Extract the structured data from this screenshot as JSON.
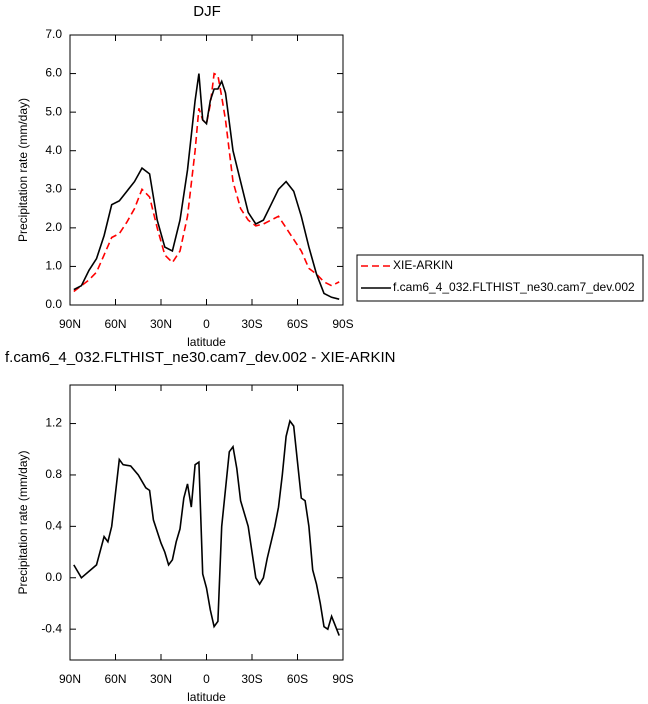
{
  "chart_data": [
    {
      "type": "line",
      "title": "DJF",
      "x_label": "latitude",
      "y_label": "Precipitation rate (mm/day)",
      "x": [
        87.5,
        82.5,
        77.5,
        72.5,
        67.5,
        62.5,
        57.5,
        52.5,
        47.5,
        42.5,
        37.5,
        32.5,
        27.5,
        22.5,
        17.5,
        12.5,
        7.5,
        5,
        2.5,
        0,
        -2.5,
        -5,
        -7.5,
        -10,
        -12.5,
        -17.5,
        -22.5,
        -27.5,
        -32.5,
        -37.5,
        -42.5,
        -47.5,
        -52.5,
        -57.5,
        -62.5,
        -67.5,
        -72.5,
        -77.5,
        -82.5,
        -87.5
      ],
      "series": [
        {
          "name": "XIE-ARKIN",
          "color": "#ff0000",
          "line_style": "dashed",
          "values": [
            0.35,
            0.5,
            0.65,
            0.85,
            1.3,
            1.75,
            1.85,
            2.15,
            2.5,
            3.0,
            2.8,
            2.0,
            1.3,
            1.1,
            1.4,
            2.3,
            4.0,
            5.1,
            4.8,
            4.7,
            5.2,
            6.0,
            5.95,
            5.4,
            4.8,
            3.2,
            2.5,
            2.2,
            2.05,
            2.1,
            2.2,
            2.3,
            2.0,
            1.7,
            1.4,
            0.95,
            0.8,
            0.6,
            0.5,
            0.6
          ]
        },
        {
          "name": "f.cam6_4_032.FLTHIST_ne30.cam7_dev.002",
          "color": "#000000",
          "line_style": "solid",
          "values": [
            0.4,
            0.5,
            0.9,
            1.2,
            1.8,
            2.6,
            2.7,
            2.95,
            3.2,
            3.55,
            3.4,
            2.2,
            1.5,
            1.4,
            2.2,
            3.5,
            5.3,
            6.0,
            4.8,
            4.7,
            5.3,
            5.6,
            5.6,
            5.8,
            5.5,
            4.0,
            3.2,
            2.4,
            2.1,
            2.2,
            2.6,
            3.0,
            3.2,
            2.95,
            2.3,
            1.5,
            0.8,
            0.3,
            0.2,
            0.15
          ]
        }
      ],
      "xlim": [
        90,
        -90
      ],
      "xticks": [
        {
          "value": 90,
          "label": "90N"
        },
        {
          "value": 60,
          "label": "60N"
        },
        {
          "value": 30,
          "label": "30N"
        },
        0,
        {
          "value": -30,
          "label": "30S"
        },
        {
          "value": -60,
          "label": "60S"
        },
        {
          "value": -90,
          "label": "90S"
        }
      ],
      "ylim": [
        0,
        7
      ],
      "yticks": [
        {
          "value": 0,
          "label": "0.0"
        },
        {
          "value": 1,
          "label": "1.0"
        },
        {
          "value": 2,
          "label": "2.0"
        },
        {
          "value": 3,
          "label": "3.0"
        },
        {
          "value": 4,
          "label": "4.0"
        },
        {
          "value": 5,
          "label": "5.0"
        },
        {
          "value": 6,
          "label": "6.0"
        },
        {
          "value": 7,
          "label": "7.0"
        }
      ],
      "legend": "right"
    },
    {
      "type": "line",
      "title": "f.cam6_4_032.FLTHIST_ne30.cam7_dev.002 - XIE-ARKIN",
      "x_label": "latitude",
      "y_label": "Precipitation rate (mm/day)",
      "x": [
        87.5,
        82.5,
        72.5,
        67.5,
        65,
        62.5,
        57.5,
        55,
        50,
        45,
        40,
        37.5,
        35,
        30,
        27.5,
        25,
        22.5,
        20,
        17.5,
        15,
        12.5,
        10,
        7.5,
        5,
        2.5,
        0,
        -2.5,
        -5,
        -7.5,
        -10,
        -15,
        -17.5,
        -20,
        -22.5,
        -27.5,
        -30,
        -32.5,
        -35,
        -37.5,
        -40,
        -45,
        -47.5,
        -50,
        -52.5,
        -55,
        -57.5,
        -60,
        -62.5,
        -65,
        -67.5,
        -70,
        -72.5,
        -75,
        -77.5,
        -80,
        -82.5,
        -87.5
      ],
      "series": [
        {
          "color": "#000000",
          "line_style": "solid",
          "values": [
            0.1,
            0.0,
            0.1,
            0.32,
            0.28,
            0.4,
            0.92,
            0.88,
            0.87,
            0.8,
            0.7,
            0.68,
            0.45,
            0.27,
            0.2,
            0.1,
            0.14,
            0.28,
            0.38,
            0.62,
            0.73,
            0.55,
            0.88,
            0.9,
            0.03,
            -0.08,
            -0.25,
            -0.38,
            -0.34,
            0.4,
            0.98,
            1.02,
            0.85,
            0.6,
            0.4,
            0.2,
            0.0,
            -0.05,
            0.0,
            0.15,
            0.4,
            0.55,
            0.8,
            1.1,
            1.22,
            1.18,
            0.9,
            0.62,
            0.6,
            0.4,
            0.06,
            -0.05,
            -0.2,
            -0.38,
            -0.4,
            -0.3,
            -0.45
          ]
        }
      ],
      "xlim": [
        90,
        -90
      ],
      "xticks": [
        {
          "value": 90,
          "label": "90N"
        },
        {
          "value": 60,
          "label": "60N"
        },
        {
          "value": 30,
          "label": "30N"
        },
        0,
        {
          "value": -30,
          "label": "30S"
        },
        {
          "value": -60,
          "label": "60S"
        },
        {
          "value": -90,
          "label": "90S"
        }
      ],
      "ylim": [
        -0.64,
        1.5
      ],
      "yticks": [
        -0.4,
        {
          "value": 0,
          "label": "0.0"
        },
        0.4,
        0.8,
        1.2
      ]
    }
  ]
}
